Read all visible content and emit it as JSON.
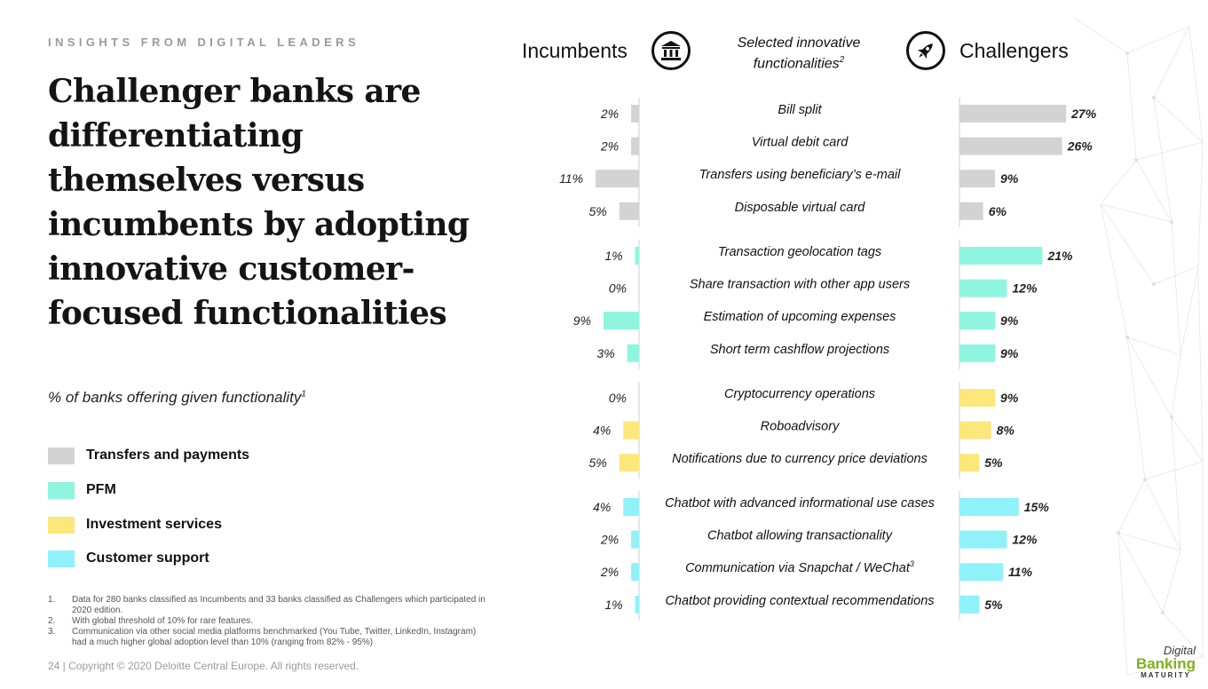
{
  "eyebrow": "INSIGHTS FROM DIGITAL LEADERS",
  "headline": "Challenger banks are differentiating themselves versus incumbents by adopting innovative customer-focused functionalities",
  "subtitle": "% of banks offering given functionality",
  "subtitle_sup": "1",
  "legend": [
    {
      "label": "Transfers and payments",
      "color": "#d3d3d3"
    },
    {
      "label": "PFM",
      "color": "#8ff5e0"
    },
    {
      "label": "Investment services",
      "color": "#fce77a"
    },
    {
      "label": "Customer support",
      "color": "#8ff2fb"
    }
  ],
  "footnotes": [
    {
      "num": "1.",
      "text": "Data for 280 banks classified as Incumbents and 33 banks classified as Challengers which participated in 2020 edition."
    },
    {
      "num": "2.",
      "text": "With global threshold of 10% for rare features."
    },
    {
      "num": "3.",
      "text": "Communication via other social media platforms benchmarked (You Tube, Twitter, LinkedIn, Instagram) had a much higher global adoption level than 10% (ranging from 82% - 95%)"
    }
  ],
  "footer": "24  |  Copyright © 2020 Deloitte Central Europe. All rights reserved.",
  "header": {
    "incumbents": "Incumbents",
    "center": "Selected innovative functionalities",
    "center_sup": "2",
    "challengers": "Challengers",
    "incumbents_icon": "bank-icon",
    "challengers_icon": "rocket-icon"
  },
  "brand": {
    "top": "Digital",
    "middle": "Banking",
    "bottom": "MATURITY",
    "color": "#7fb11c"
  },
  "chart_data": {
    "type": "bar",
    "series": [
      {
        "name": "Incumbents"
      },
      {
        "name": "Challengers"
      }
    ],
    "groups": [
      {
        "name": "Transfers and payments",
        "color": "#d3d3d3",
        "items": [
          {
            "label": "Bill split",
            "sup": "",
            "incumbents": 2,
            "challengers": 27
          },
          {
            "label": "Virtual debit card",
            "sup": "",
            "incumbents": 2,
            "challengers": 26
          },
          {
            "label": "Transfers using beneficiary’s e-mail",
            "sup": "",
            "incumbents": 11,
            "challengers": 9
          },
          {
            "label": "Disposable virtual card",
            "sup": "",
            "incumbents": 5,
            "challengers": 6
          }
        ]
      },
      {
        "name": "PFM",
        "color": "#8ff5e0",
        "items": [
          {
            "label": "Transaction geolocation tags",
            "sup": "",
            "incumbents": 1,
            "challengers": 21
          },
          {
            "label": "Share transaction with other app users",
            "sup": "",
            "incumbents": 0,
            "challengers": 12
          },
          {
            "label": "Estimation of upcoming expenses",
            "sup": "",
            "incumbents": 9,
            "challengers": 9
          },
          {
            "label": "Short term cashflow projections",
            "sup": "",
            "incumbents": 3,
            "challengers": 9
          }
        ]
      },
      {
        "name": "Investment services",
        "color": "#fce77a",
        "items": [
          {
            "label": "Cryptocurrency operations",
            "sup": "",
            "incumbents": 0,
            "challengers": 9
          },
          {
            "label": "Roboadvisory",
            "sup": "",
            "incumbents": 4,
            "challengers": 8
          },
          {
            "label": "Notifications due to currency price deviations",
            "sup": "",
            "incumbents": 5,
            "challengers": 5
          }
        ]
      },
      {
        "name": "Customer support",
        "color": "#8ff2fb",
        "items": [
          {
            "label": "Chatbot with advanced informational use cases",
            "sup": "",
            "incumbents": 4,
            "challengers": 15
          },
          {
            "label": "Chatbot allowing transactionality",
            "sup": "",
            "incumbents": 2,
            "challengers": 12
          },
          {
            "label": "Communication via Snapchat /  WeChat",
            "sup": "3",
            "incumbents": 2,
            "challengers": 11
          },
          {
            "label": "Chatbot providing contextual recommendations",
            "sup": "",
            "incumbents": 1,
            "challengers": 5
          }
        ]
      }
    ],
    "value_suffix": "%"
  }
}
